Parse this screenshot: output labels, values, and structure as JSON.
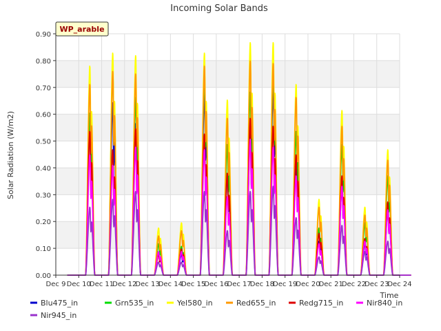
{
  "chart_data": {
    "type": "line",
    "title": "Incoming Solar Bands",
    "xlabel": "Time",
    "ylabel": "Solar Radiation (W/m2)",
    "annotation": "WP_arable",
    "xlim": [
      "Dec 9",
      "Dec 24"
    ],
    "ylim": [
      0,
      0.9
    ],
    "x_ticks": [
      "Dec 9",
      "Dec 10",
      "Dec 11",
      "Dec 12",
      "Dec 13",
      "Dec 14",
      "Dec 15",
      "Dec 16",
      "Dec 17",
      "Dec 18",
      "Dec 19",
      "Dec 20",
      "Dec 21",
      "Dec 22",
      "Dec 23",
      "Dec 24"
    ],
    "y_ticks": [
      "0.00",
      "0.10",
      "0.20",
      "0.30",
      "0.40",
      "0.50",
      "0.60",
      "0.70",
      "0.80",
      "0.90"
    ],
    "grid": true,
    "legend_position": "bottom",
    "day_dates": [
      "Dec 10",
      "Dec 11",
      "Dec 12",
      "Dec 13",
      "Dec 14",
      "Dec 15",
      "Dec 16",
      "Dec 17",
      "Dec 18",
      "Dec 19",
      "Dec 20",
      "Dec 21",
      "Dec 22",
      "Dec 23"
    ],
    "series": [
      {
        "name": "Blu475_in",
        "color": "#0000cc",
        "values": [
          0.58,
          0.66,
          0.58,
          0.08,
          0.08,
          0.69,
          0.38,
          0.54,
          0.71,
          0.42,
          0.13,
          0.34,
          0.12,
          0.25
        ]
      },
      {
        "name": "Grn535_in",
        "color": "#00dd00",
        "values": [
          0.62,
          0.79,
          0.68,
          0.12,
          0.11,
          0.77,
          0.5,
          0.7,
          0.78,
          0.55,
          0.18,
          0.5,
          0.2,
          0.38
        ]
      },
      {
        "name": "Yel580_in",
        "color": "#ffff00",
        "values": [
          0.8,
          0.85,
          0.84,
          0.18,
          0.2,
          0.85,
          0.67,
          0.89,
          0.89,
          0.73,
          0.29,
          0.63,
          0.26,
          0.48
        ]
      },
      {
        "name": "Red655_in",
        "color": "#ff9900",
        "values": [
          0.73,
          0.78,
          0.77,
          0.15,
          0.17,
          0.8,
          0.6,
          0.82,
          0.81,
          0.68,
          0.26,
          0.57,
          0.23,
          0.44
        ]
      },
      {
        "name": "Redg715_in",
        "color": "#dd0000",
        "values": [
          0.55,
          0.48,
          0.56,
          0.08,
          0.1,
          0.54,
          0.39,
          0.6,
          0.57,
          0.46,
          0.16,
          0.38,
          0.14,
          0.28
        ]
      },
      {
        "name": "Nir840_in",
        "color": "#ff00ff",
        "values": [
          0.46,
          0.42,
          0.49,
          0.09,
          0.09,
          0.48,
          0.3,
          0.52,
          0.49,
          0.38,
          0.12,
          0.34,
          0.13,
          0.25
        ]
      },
      {
        "name": "Nir945_in",
        "color": "#9933cc",
        "values": [
          0.26,
          0.29,
          0.32,
          0.05,
          0.05,
          0.32,
          0.17,
          0.32,
          0.34,
          0.22,
          0.07,
          0.19,
          0.09,
          0.13
        ]
      }
    ]
  }
}
